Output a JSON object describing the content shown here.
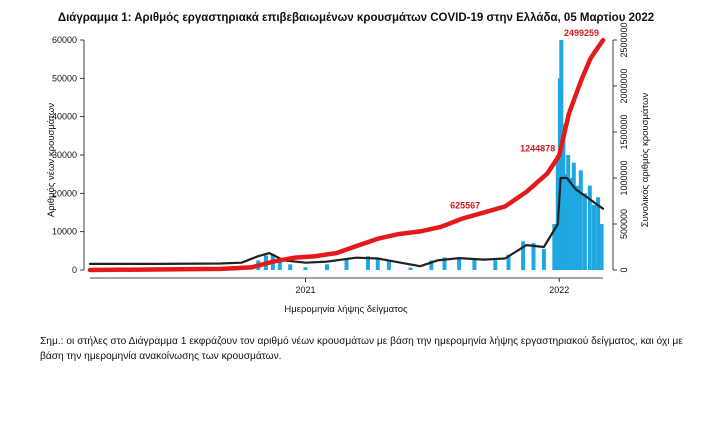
{
  "chart_data": {
    "type": "bar",
    "title": "Διάγραμμα 1: Αριθμός εργαστηριακά επιβεβαιωμένων κρουσμάτων COVID-19 στην Ελλάδα, 05 Μαρτίου 2022",
    "xlabel": "Ημερομηνία λήψης δείγματος",
    "ylabel": "Αριθμός νέων κρουσμάτων",
    "y2label": "Συνολικός αριθμός κρουσμάτων",
    "x_ticks": [
      "2021",
      "2022"
    ],
    "x_range": [
      "2020-02-26",
      "2022-03-05"
    ],
    "ylim": [
      0,
      60000
    ],
    "y_ticks": [
      0,
      10000,
      20000,
      30000,
      40000,
      50000,
      60000
    ],
    "y2lim": [
      0,
      2500000
    ],
    "y2_ticks": [
      0,
      500000,
      1000000,
      1500000,
      2000000,
      2500000
    ],
    "grid": false,
    "series": [
      {
        "name": "",
        "kind": "bar",
        "axis": "left",
        "color": "#1ea7e1",
        "points": [
          [
            "2020-02-26",
            0
          ],
          [
            "2020-04-01",
            80
          ],
          [
            "2020-05-01",
            15
          ],
          [
            "2020-06-01",
            20
          ],
          [
            "2020-07-01",
            40
          ],
          [
            "2020-08-01",
            200
          ],
          [
            "2020-09-01",
            300
          ],
          [
            "2020-10-01",
            600
          ],
          [
            "2020-10-25",
            2500
          ],
          [
            "2020-11-05",
            3800
          ],
          [
            "2020-11-15",
            4200
          ],
          [
            "2020-11-25",
            3000
          ],
          [
            "2020-12-10",
            1500
          ],
          [
            "2021-01-01",
            700
          ],
          [
            "2021-02-01",
            1500
          ],
          [
            "2021-03-01",
            2800
          ],
          [
            "2021-04-01",
            3600
          ],
          [
            "2021-04-15",
            3100
          ],
          [
            "2021-05-01",
            2200
          ],
          [
            "2021-06-01",
            600
          ],
          [
            "2021-07-01",
            2500
          ],
          [
            "2021-07-20",
            3300
          ],
          [
            "2021-08-10",
            3000
          ],
          [
            "2021-09-01",
            2700
          ],
          [
            "2021-10-01",
            2500
          ],
          [
            "2021-10-20",
            4000
          ],
          [
            "2021-11-10",
            7500
          ],
          [
            "2021-11-25",
            7000
          ],
          [
            "2021-12-10",
            5500
          ],
          [
            "2021-12-25",
            12000
          ],
          [
            "2021-12-30",
            30000
          ],
          [
            "2022-01-02",
            50000
          ],
          [
            "2022-01-04",
            60000
          ],
          [
            "2022-01-07",
            38000
          ],
          [
            "2022-01-10",
            25000
          ],
          [
            "2022-01-14",
            30000
          ],
          [
            "2022-01-18",
            24000
          ],
          [
            "2022-01-22",
            28000
          ],
          [
            "2022-01-27",
            22000
          ],
          [
            "2022-02-01",
            26000
          ],
          [
            "2022-02-07",
            20000
          ],
          [
            "2022-02-14",
            22000
          ],
          [
            "2022-02-20",
            17000
          ],
          [
            "2022-02-26",
            19000
          ],
          [
            "2022-03-03",
            12000
          ]
        ]
      },
      {
        "name": "",
        "kind": "line",
        "axis": "left",
        "color": "#222222",
        "points": [
          [
            "2020-02-26",
            1600
          ],
          [
            "2020-06-01",
            1600
          ],
          [
            "2020-09-01",
            1700
          ],
          [
            "2020-10-01",
            1900
          ],
          [
            "2020-10-25",
            3600
          ],
          [
            "2020-11-10",
            4400
          ],
          [
            "2020-12-01",
            2500
          ],
          [
            "2021-01-01",
            1900
          ],
          [
            "2021-02-01",
            2200
          ],
          [
            "2021-03-15",
            3200
          ],
          [
            "2021-04-15",
            3000
          ],
          [
            "2021-05-15",
            2000
          ],
          [
            "2021-06-15",
            1000
          ],
          [
            "2021-07-10",
            2500
          ],
          [
            "2021-08-10",
            3100
          ],
          [
            "2021-09-15",
            2700
          ],
          [
            "2021-10-15",
            3000
          ],
          [
            "2021-11-15",
            6500
          ],
          [
            "2021-12-10",
            6000
          ],
          [
            "2021-12-30",
            12000
          ],
          [
            "2022-01-03",
            24000
          ],
          [
            "2022-01-12",
            24000
          ],
          [
            "2022-01-25",
            21000
          ],
          [
            "2022-02-10",
            19000
          ],
          [
            "2022-02-25",
            17000
          ],
          [
            "2022-03-05",
            16000
          ]
        ]
      },
      {
        "name": "",
        "kind": "line",
        "axis": "right",
        "color": "#e41a1a",
        "points": [
          [
            "2020-02-26",
            0
          ],
          [
            "2020-09-01",
            12000
          ],
          [
            "2020-10-15",
            28000
          ],
          [
            "2020-11-15",
            90000
          ],
          [
            "2020-12-15",
            133000
          ],
          [
            "2021-01-15",
            150000
          ],
          [
            "2021-02-15",
            185000
          ],
          [
            "2021-03-15",
            260000
          ],
          [
            "2021-04-15",
            340000
          ],
          [
            "2021-05-15",
            390000
          ],
          [
            "2021-06-15",
            420000
          ],
          [
            "2021-07-15",
            470000
          ],
          [
            "2021-08-15",
            560000
          ],
          [
            "2021-09-15",
            625567
          ],
          [
            "2021-10-15",
            690000
          ],
          [
            "2021-11-15",
            850000
          ],
          [
            "2021-12-15",
            1050000
          ],
          [
            "2022-01-01",
            1244878
          ],
          [
            "2022-01-15",
            1700000
          ],
          [
            "2022-02-01",
            2050000
          ],
          [
            "2022-02-15",
            2300000
          ],
          [
            "2022-03-05",
            2499259
          ]
        ]
      }
    ],
    "annotations": [
      {
        "text": "625567",
        "x": "2021-09-15",
        "y2": 625567
      },
      {
        "text": "1244878",
        "x": "2022-01-01",
        "y2": 1244878
      },
      {
        "text": "2499259",
        "x": "2022-03-05",
        "y2": 2499259
      }
    ]
  },
  "footnote": "Σημ.: οι στήλες στο Διάγραμμα 1 εκφράζουν τον αριθμό νέων κρουσμάτων με βάση την ημερομηνία λήψης εργαστηριακού δείγματος, και όχι με βάση την ημερομηνία ανακοίνωσης των κρουσμάτων."
}
